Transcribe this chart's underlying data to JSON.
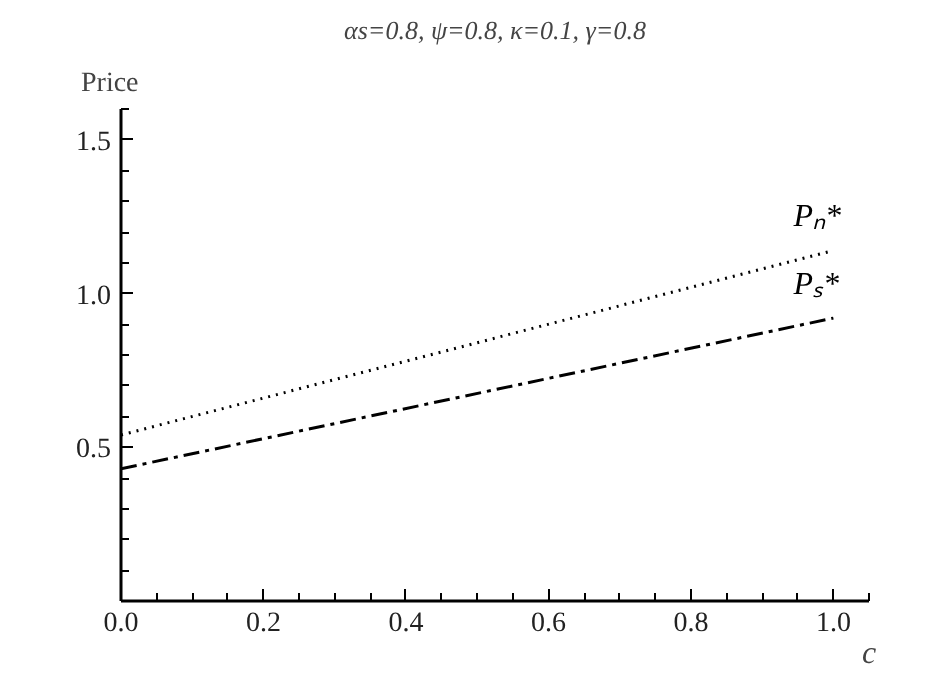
{
  "chart_data": {
    "type": "line",
    "title": "αs=0.8, ψ=0.8, κ=0.1, γ=0.8",
    "xlabel": "c",
    "ylabel": "Price",
    "x": [
      0,
      1
    ],
    "series": [
      {
        "name": "Pₙ*",
        "color": "#000000",
        "line_style": "dotted",
        "values": [
          0.54,
          1.14
        ]
      },
      {
        "name": "Pₛ*",
        "color": "#000000",
        "line_style": "dashdot",
        "values": [
          0.43,
          0.92
        ]
      }
    ],
    "xlim": [
      0,
      1.05
    ],
    "ylim": [
      0,
      1.6
    ],
    "xticks": [
      {
        "value": 0,
        "label": "0.0"
      },
      {
        "value": 0.2,
        "label": "0.2"
      },
      {
        "value": 0.4,
        "label": "0.4"
      },
      {
        "value": 0.6,
        "label": "0.6"
      },
      {
        "value": 0.8,
        "label": "0.8"
      },
      {
        "value": 1.0,
        "label": "1.0"
      }
    ],
    "yticks": [
      0.5,
      {
        "value": 1.0,
        "label": "1.0"
      },
      1.5
    ],
    "grid": false,
    "marker": "none"
  }
}
